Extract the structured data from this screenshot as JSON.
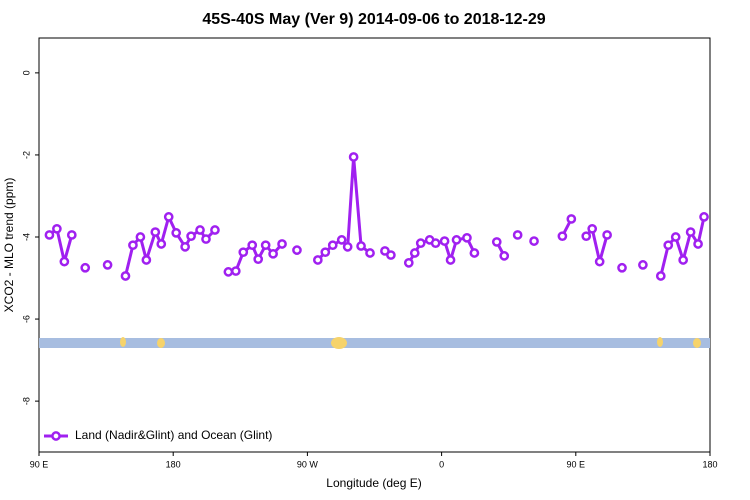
{
  "chart_data": {
    "type": "line",
    "title": "45S-40S May (Ver 9)   2014-09-06 to 2018-12-29",
    "x_label": "Longitude (deg E)",
    "y_label": "XCO2 - MLO trend (ppm)",
    "x": [
      97,
      102,
      107,
      112,
      117,
      121,
      129,
      136,
      142,
      148,
      153,
      158,
      162,
      168,
      172,
      177,
      182,
      188,
      192,
      198,
      202,
      208,
      212,
      217,
      222,
      227,
      233,
      237,
      242,
      247,
      253,
      258,
      263,
      270,
      277,
      282,
      287,
      293,
      297,
      301,
      306,
      312,
      317,
      322,
      326,
      332,
      338,
      342,
      346,
      352,
      356,
      362,
      366,
      370,
      377,
      382,
      390,
      397,
      402,
      406,
      411,
      416,
      422,
      432,
      441,
      447,
      452,
      457,
      461,
      466,
      471,
      476,
      481,
      488,
      495,
      501,
      507,
      512,
      517,
      522,
      527,
      532,
      536
    ],
    "series": [
      {
        "name": "Land (Nadir&Glint) and Ocean (Glint)",
        "color": "#a020f0",
        "values": [
          -3.95,
          -3.8,
          -4.6,
          -3.95,
          null,
          -4.75,
          null,
          -4.68,
          null,
          -4.95,
          -4.2,
          -4.0,
          -4.56,
          -3.88,
          -4.17,
          -3.51,
          -3.9,
          -4.24,
          -3.98,
          -3.83,
          -4.05,
          -3.83,
          null,
          -4.85,
          -4.83,
          -4.37,
          -4.2,
          -4.54,
          -4.2,
          -4.41,
          -4.17,
          null,
          -4.32,
          null,
          -4.56,
          -4.37,
          -4.2,
          -4.07,
          -4.24,
          -2.05,
          -4.22,
          -4.39,
          null,
          -4.34,
          -4.44,
          null,
          -4.63,
          -4.39,
          -4.15,
          -4.07,
          -4.15,
          -4.1,
          -4.56,
          -4.07,
          -4.02,
          -4.39,
          null,
          -4.12,
          -4.46,
          null,
          -3.95,
          null,
          -4.1,
          null,
          -3.98,
          -3.56,
          null,
          -3.98,
          -3.8,
          -4.6,
          -3.95,
          null,
          -4.75,
          null,
          -4.68,
          null,
          -4.95,
          -4.2,
          -4.0,
          -4.56,
          -3.88,
          -4.17,
          -3.51
        ]
      }
    ],
    "xlim": [
      90,
      540
    ],
    "xticks": [
      {
        "value": 90,
        "label": "90 E"
      },
      180,
      {
        "value": 270,
        "label": "90 W"
      },
      {
        "value": 360,
        "label": "0"
      },
      {
        "value": 450,
        "label": "90 E"
      },
      {
        "value": 540,
        "label": "180"
      }
    ],
    "ylim": [
      -9.24,
      0.85
    ],
    "yticks": [
      0,
      -2,
      -4,
      -6,
      -8
    ],
    "legend": "bottom-left"
  }
}
